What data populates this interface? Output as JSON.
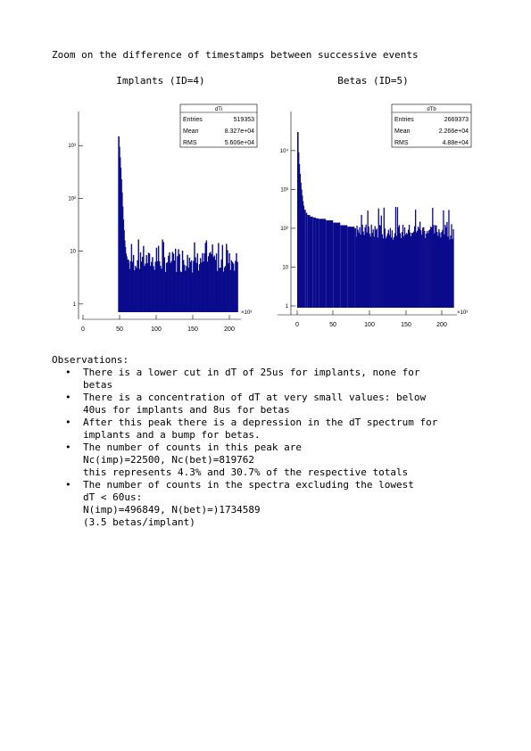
{
  "page_title": "Zoom on the difference of timestamps between successive events",
  "chart_data": [
    {
      "type": "bar",
      "title": "Implants (ID=4)",
      "stats": {
        "name": "dTi",
        "entries_label": "Entries",
        "entries": "519353",
        "mean_label": "Mean",
        "mean": "8.327e+04",
        "rms_label": "RMS",
        "rms": "5.606e+04"
      },
      "x_ticks": [
        "0",
        "50",
        "100",
        "150",
        "200"
      ],
      "x_exponent": "×10³",
      "y_scale": "log",
      "y_ticks": [
        "1",
        "10",
        "10²",
        "10³"
      ],
      "xlim": [
        0,
        210
      ],
      "ylim": [
        0.7,
        3000
      ],
      "low_cut": 25,
      "peak_values": [
        [
          25,
          1500
        ],
        [
          26,
          950
        ],
        [
          27,
          600
        ],
        [
          28,
          380
        ],
        [
          29,
          230
        ],
        [
          30,
          130
        ],
        [
          31,
          70
        ],
        [
          32,
          40
        ],
        [
          33,
          25
        ],
        [
          34,
          16
        ],
        [
          35,
          12
        ],
        [
          36,
          9
        ],
        [
          37,
          8
        ],
        [
          38,
          6
        ],
        [
          39,
          7
        ],
        [
          40,
          6
        ]
      ],
      "plateau": {
        "x_start": 40,
        "x_end": 208,
        "level": 6.5
      }
    },
    {
      "type": "bar",
      "title": "Betas (ID=5)",
      "stats": {
        "name": "dTb",
        "entries_label": "Entries",
        "entries": "2669373",
        "mean_label": "Mean",
        "mean": "2.266e+04",
        "rms_label": "RMS",
        "rms": "4.88e+04"
      },
      "x_ticks": [
        "0",
        "50",
        "100",
        "150",
        "200"
      ],
      "x_exponent": "×10³",
      "y_scale": "log",
      "y_ticks": [
        "1",
        "10",
        "10²",
        "10³",
        "10⁴"
      ],
      "xlim": [
        0,
        220
      ],
      "ylim": [
        0.9,
        60000
      ],
      "low_cut": 0,
      "peak_values": [
        [
          0,
          30000
        ],
        [
          1,
          9000
        ],
        [
          2,
          4500
        ],
        [
          3,
          2500
        ],
        [
          4,
          1500
        ],
        [
          5,
          1000
        ],
        [
          6,
          700
        ],
        [
          7,
          500
        ],
        [
          8,
          380
        ],
        [
          10,
          300
        ],
        [
          12,
          250
        ],
        [
          14,
          220
        ],
        [
          18,
          200
        ],
        [
          22,
          190
        ],
        [
          26,
          180
        ],
        [
          30,
          175
        ],
        [
          40,
          160
        ],
        [
          50,
          140
        ],
        [
          60,
          120
        ],
        [
          70,
          110
        ],
        [
          80,
          100
        ]
      ],
      "plateau": {
        "x_start": 80,
        "x_end": 218,
        "level": 85
      }
    }
  ],
  "observations": {
    "title": "Observations:",
    "items": [
      {
        "lines": [
          "There is a lower cut in dT of 25us for implants, none for",
          "betas"
        ]
      },
      {
        "lines": [
          "There is a concentration of dT at very small values: below",
          "40us for implants and 8us for betas"
        ]
      },
      {
        "lines": [
          "After this peak there is a depression in the dT spectrum for",
          "implants and a bump for betas."
        ]
      },
      {
        "lines": [
          "The number of counts in this peak are",
          "Nc(imp)=22500, Nc(bet)=819762",
          "this represents 4.3% and 30.7% of the respective totals"
        ]
      },
      {
        "lines": [
          "The number of counts in the spectra excluding the lowest",
          "dT < 60us:",
          "N(imp)=496849, N(bet)=)1734589",
          "(3.5 betas/implant)"
        ]
      }
    ]
  },
  "colors": {
    "bar_fill": "#0a0a8c",
    "axis": "#000000"
  }
}
